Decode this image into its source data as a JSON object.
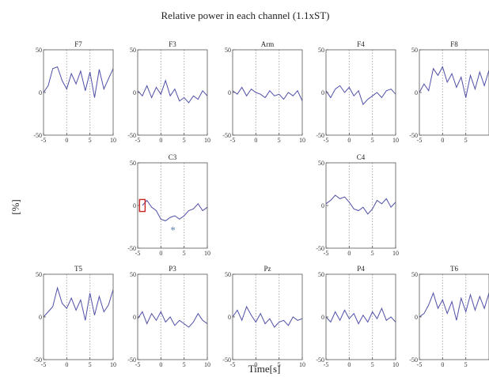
{
  "figure": {
    "title": "Relative power in each channel (1.1xST)",
    "xlabel": "Time[s]",
    "ylabel": "[%]"
  },
  "colors": {
    "trace": "#4f4fa8",
    "axis": "#555555",
    "zero_line": "#aaaaaa",
    "marker_box": "#cc2222",
    "asterisk": "#5a7fa8"
  },
  "chart_data": [
    {
      "type": "line",
      "title": "F7",
      "xlim": [
        -5,
        10
      ],
      "ylim": [
        -50,
        50
      ],
      "xticks": [
        -5,
        0,
        5,
        10
      ],
      "yticks": [
        50,
        0,
        -50
      ],
      "grid": "dotted vertical lines at 0 and 5",
      "x": [
        -5,
        -4,
        -3,
        -2,
        -1,
        0,
        1,
        2,
        3,
        4,
        5,
        6,
        7,
        8,
        9,
        10
      ],
      "y": [
        0,
        8,
        28,
        30,
        14,
        4,
        22,
        10,
        25,
        2,
        24,
        -6,
        27,
        4,
        16,
        28
      ]
    },
    {
      "type": "line",
      "title": "F3",
      "xlim": [
        -5,
        10
      ],
      "ylim": [
        -50,
        50
      ],
      "xticks": [
        -5,
        0,
        5,
        10
      ],
      "yticks": [
        50,
        0,
        -50
      ],
      "grid": "dotted vertical lines at 0 and 5",
      "x": [
        -5,
        -4,
        -3,
        -2,
        -1,
        0,
        1,
        2,
        3,
        4,
        5,
        6,
        7,
        8,
        9,
        10
      ],
      "y": [
        2,
        -4,
        8,
        -6,
        6,
        -2,
        14,
        -4,
        4,
        -10,
        -6,
        -12,
        -4,
        -8,
        2,
        -4
      ]
    },
    {
      "type": "line",
      "title": "Arm",
      "xlim": [
        -5,
        10
      ],
      "ylim": [
        -50,
        50
      ],
      "xticks": [
        -5,
        0,
        5,
        10
      ],
      "yticks": [
        50,
        0,
        -50
      ],
      "grid": "dotted vertical lines at 0 and 5",
      "x": [
        -5,
        -4,
        -3,
        -2,
        -1,
        0,
        1,
        2,
        3,
        4,
        5,
        6,
        7,
        8,
        9,
        10
      ],
      "y": [
        2,
        -2,
        6,
        -4,
        4,
        0,
        -2,
        -6,
        2,
        -4,
        -2,
        -8,
        0,
        -4,
        2,
        -10
      ]
    },
    {
      "type": "line",
      "title": "F4",
      "xlim": [
        -5,
        10
      ],
      "ylim": [
        -50,
        50
      ],
      "xticks": [
        -5,
        0,
        5,
        10
      ],
      "yticks": [
        50,
        0,
        -50
      ],
      "grid": "dotted vertical lines at 0 and 5",
      "x": [
        -5,
        -4,
        -3,
        -2,
        -1,
        0,
        1,
        2,
        3,
        4,
        5,
        6,
        7,
        8,
        9,
        10
      ],
      "y": [
        2,
        -6,
        4,
        8,
        0,
        6,
        -4,
        2,
        -14,
        -8,
        -4,
        0,
        -6,
        2,
        4,
        -2
      ]
    },
    {
      "type": "line",
      "title": "F8",
      "xlim": [
        -5,
        10
      ],
      "ylim": [
        -50,
        50
      ],
      "xticks": [
        -5,
        0,
        5,
        10
      ],
      "yticks": [
        50,
        0,
        -50
      ],
      "grid": "dotted vertical lines at 0 and 5",
      "x": [
        -5,
        -4,
        -3,
        -2,
        -1,
        0,
        1,
        2,
        3,
        4,
        5,
        6,
        7,
        8,
        9,
        10
      ],
      "y": [
        0,
        10,
        2,
        28,
        20,
        30,
        12,
        22,
        6,
        18,
        -6,
        20,
        4,
        24,
        8,
        26
      ]
    },
    {
      "type": "line",
      "title": "C3",
      "xlim": [
        -5,
        10
      ],
      "ylim": [
        -50,
        50
      ],
      "xticks": [
        -5,
        0,
        5,
        10
      ],
      "yticks": [
        50,
        0,
        -50
      ],
      "grid": "dotted vertical lines at 0 and 5",
      "annotations": [
        "marker box at onset",
        "asterisk"
      ],
      "x": [
        -4,
        -3,
        -2,
        -1,
        0,
        1,
        2,
        3,
        4,
        5,
        6,
        7,
        8,
        9,
        10
      ],
      "y": [
        0,
        6,
        -2,
        -6,
        -16,
        -18,
        -14,
        -12,
        -16,
        -12,
        -6,
        -4,
        2,
        -6,
        -2
      ]
    },
    {
      "type": "line",
      "title": "C4",
      "xlim": [
        -5,
        10
      ],
      "ylim": [
        -50,
        50
      ],
      "xticks": [
        -5,
        0,
        5,
        10
      ],
      "yticks": [
        50,
        0,
        -50
      ],
      "grid": "dotted vertical lines at 0 and 5",
      "x": [
        -5,
        -4,
        -3,
        -2,
        -1,
        0,
        1,
        2,
        3,
        4,
        5,
        6,
        7,
        8,
        9,
        10
      ],
      "y": [
        2,
        6,
        12,
        8,
        10,
        4,
        -4,
        -6,
        -2,
        -10,
        -4,
        6,
        2,
        8,
        -2,
        4
      ]
    },
    {
      "type": "line",
      "title": "T5",
      "xlim": [
        -5,
        10
      ],
      "ylim": [
        -50,
        50
      ],
      "xticks": [
        -5,
        0,
        5,
        10
      ],
      "yticks": [
        50,
        0,
        -50
      ],
      "grid": "dotted vertical lines at 0 and 5",
      "x": [
        -5,
        -4,
        -3,
        -2,
        -1,
        0,
        1,
        2,
        3,
        4,
        5,
        6,
        7,
        8,
        9,
        10
      ],
      "y": [
        0,
        6,
        12,
        34,
        16,
        10,
        22,
        8,
        20,
        -4,
        28,
        2,
        24,
        6,
        14,
        32
      ]
    },
    {
      "type": "line",
      "title": "P3",
      "xlim": [
        -5,
        10
      ],
      "ylim": [
        -50,
        50
      ],
      "xticks": [
        -5,
        0,
        5,
        10
      ],
      "yticks": [
        50,
        0,
        -50
      ],
      "grid": "dotted vertical lines at 0 and 5",
      "x": [
        -5,
        -4,
        -3,
        -2,
        -1,
        0,
        1,
        2,
        3,
        4,
        5,
        6,
        7,
        8,
        9,
        10
      ],
      "y": [
        -2,
        6,
        -8,
        4,
        -4,
        6,
        -6,
        0,
        -10,
        -4,
        -8,
        -12,
        -6,
        4,
        -4,
        -8
      ]
    },
    {
      "type": "line",
      "title": "Pz",
      "xlim": [
        -5,
        10
      ],
      "ylim": [
        -50,
        50
      ],
      "xticks": [
        -5,
        0,
        5,
        10
      ],
      "yticks": [
        50,
        0,
        -50
      ],
      "grid": "dotted vertical lines at 0 and 5",
      "x": [
        -5,
        -4,
        -3,
        -2,
        -1,
        0,
        1,
        2,
        3,
        4,
        5,
        6,
        7,
        8,
        9,
        10
      ],
      "y": [
        0,
        8,
        -4,
        12,
        2,
        -6,
        4,
        -8,
        -2,
        -12,
        -6,
        -4,
        -10,
        0,
        -4,
        -2
      ]
    },
    {
      "type": "line",
      "title": "P4",
      "xlim": [
        -5,
        10
      ],
      "ylim": [
        -50,
        50
      ],
      "xticks": [
        -5,
        0,
        5,
        10
      ],
      "yticks": [
        50,
        0,
        -50
      ],
      "grid": "dotted vertical lines at 0 and 5",
      "x": [
        -5,
        -4,
        -3,
        -2,
        -1,
        0,
        1,
        2,
        3,
        4,
        5,
        6,
        7,
        8,
        9,
        10
      ],
      "y": [
        0,
        -6,
        6,
        -4,
        8,
        -2,
        4,
        -8,
        2,
        -6,
        6,
        -2,
        10,
        -4,
        0,
        -6
      ]
    },
    {
      "type": "line",
      "title": "T6",
      "xlim": [
        -5,
        10
      ],
      "ylim": [
        -50,
        50
      ],
      "xticks": [
        -5,
        0,
        5,
        10
      ],
      "yticks": [
        50,
        0,
        -50
      ],
      "grid": "dotted vertical lines at 0 and 5",
      "x": [
        -5,
        -4,
        -3,
        -2,
        -1,
        0,
        1,
        2,
        3,
        4,
        5,
        6,
        7,
        8,
        9,
        10
      ],
      "y": [
        0,
        4,
        14,
        28,
        10,
        20,
        4,
        18,
        -4,
        22,
        6,
        26,
        8,
        24,
        10,
        28
      ]
    }
  ]
}
